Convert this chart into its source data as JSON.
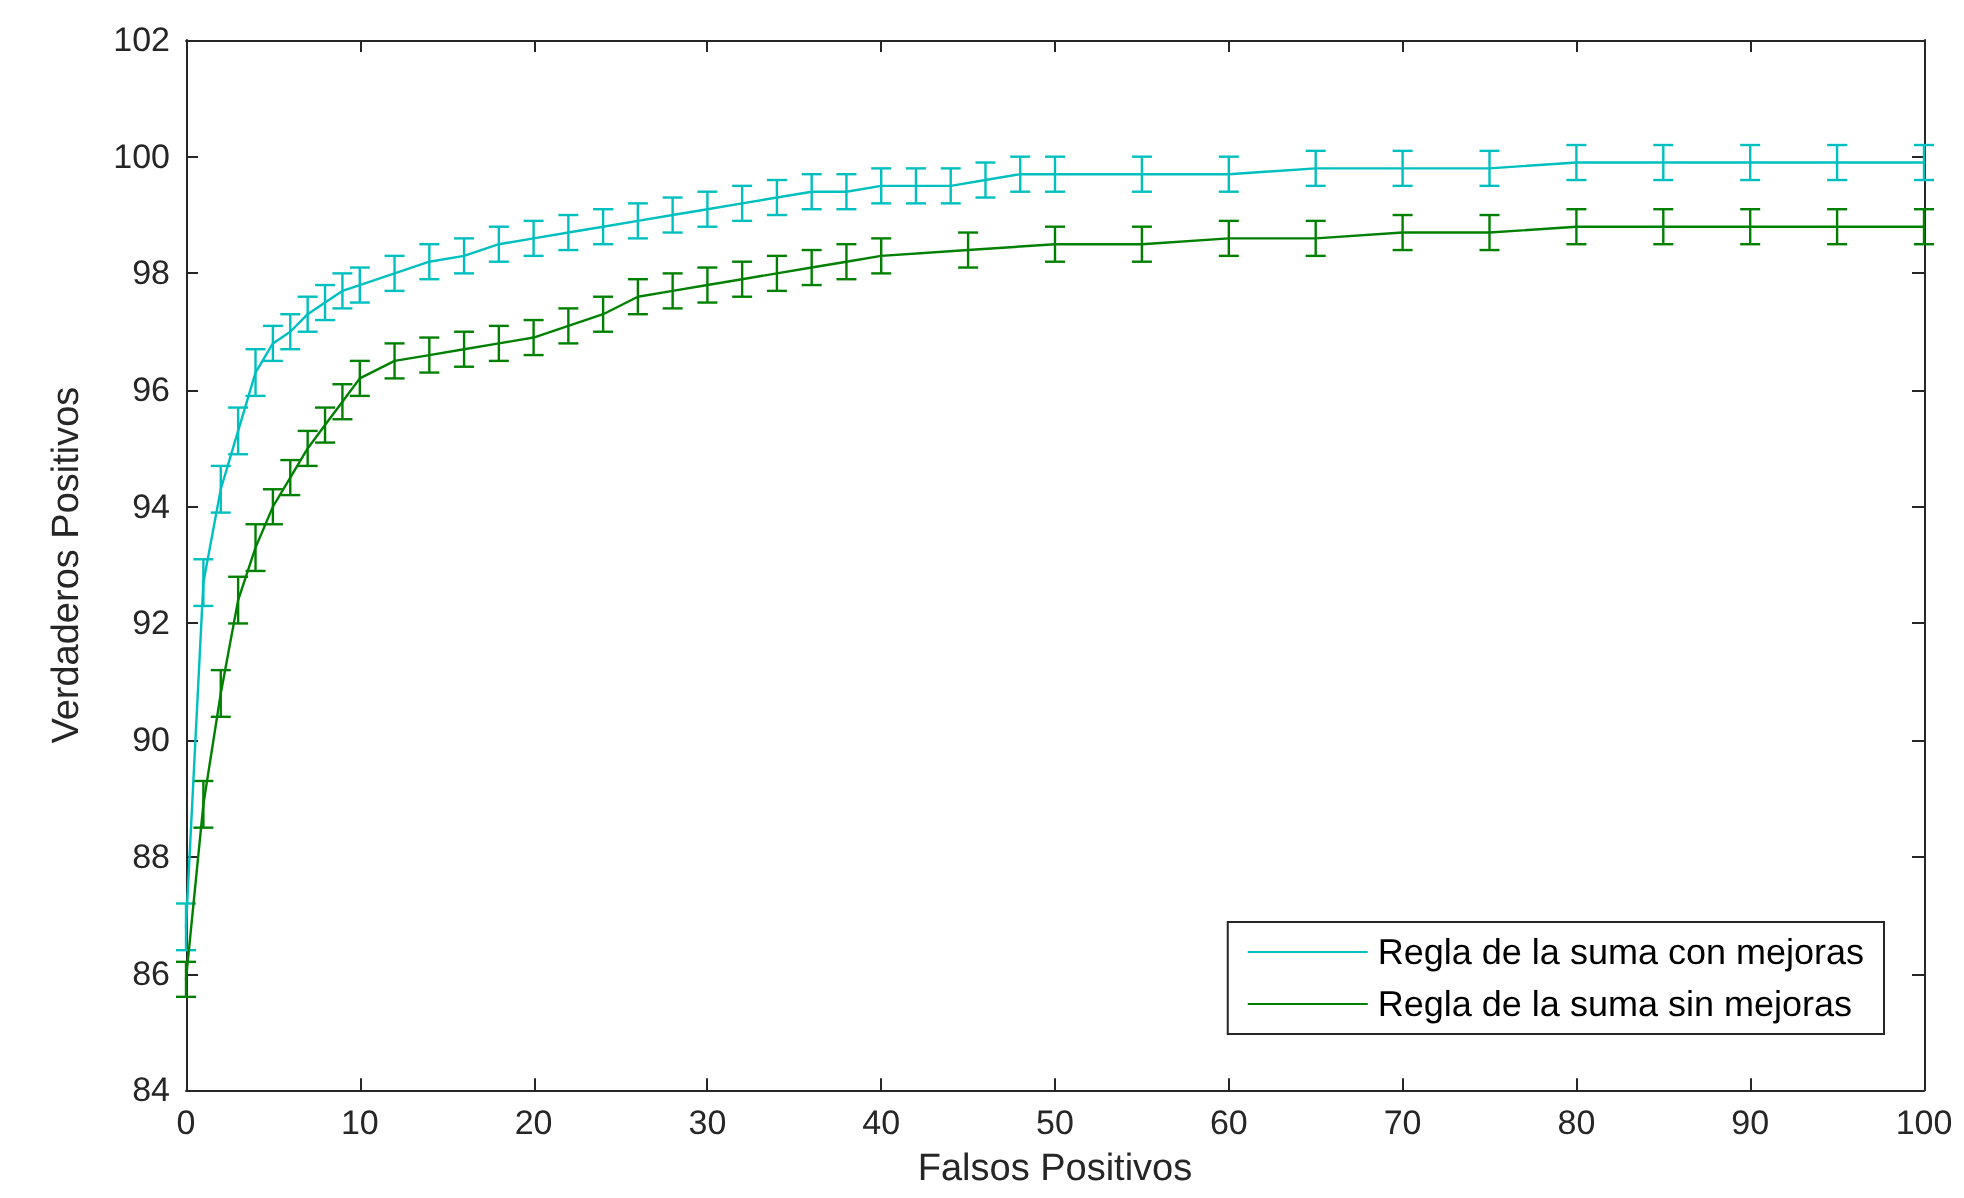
{
  "chart_data": {
    "type": "line",
    "xlabel": "Falsos Positivos",
    "ylabel": "Verdaderos Positivos",
    "xlim": [
      0,
      100
    ],
    "xticks": [
      0,
      10,
      20,
      30,
      40,
      50,
      60,
      70,
      80,
      90,
      100
    ],
    "ylim": [
      84,
      102
    ],
    "yticks": [
      84,
      86,
      88,
      90,
      92,
      94,
      96,
      98,
      100,
      102
    ],
    "grid": false,
    "legend": "bottom right",
    "marker": "none",
    "line_style": "solid",
    "series": [
      {
        "name": "Regla de la suma con mejoras",
        "color": "#00bfbf",
        "x": [
          0,
          1,
          2,
          3,
          4,
          5,
          6,
          7,
          8,
          9,
          10,
          12,
          14,
          16,
          18,
          20,
          22,
          24,
          26,
          28,
          30,
          32,
          34,
          36,
          38,
          40,
          42,
          44,
          46,
          48,
          50,
          55,
          60,
          65,
          70,
          75,
          80,
          85,
          90,
          95,
          100
        ],
        "values": [
          86.8,
          92.7,
          94.3,
          95.3,
          96.3,
          96.8,
          97.0,
          97.3,
          97.5,
          97.7,
          97.8,
          98.0,
          98.2,
          98.3,
          98.5,
          98.6,
          98.7,
          98.8,
          98.9,
          99.0,
          99.1,
          99.2,
          99.3,
          99.4,
          99.4,
          99.5,
          99.5,
          99.5,
          99.6,
          99.7,
          99.7,
          99.7,
          99.7,
          99.8,
          99.8,
          99.8,
          99.9,
          99.9,
          99.9,
          99.9,
          99.9
        ],
        "errors": [
          0.4,
          0.4,
          0.4,
          0.4,
          0.4,
          0.3,
          0.3,
          0.3,
          0.3,
          0.3,
          0.3,
          0.3,
          0.3,
          0.3,
          0.3,
          0.3,
          0.3,
          0.3,
          0.3,
          0.3,
          0.3,
          0.3,
          0.3,
          0.3,
          0.3,
          0.3,
          0.3,
          0.3,
          0.3,
          0.3,
          0.3,
          0.3,
          0.3,
          0.3,
          0.3,
          0.3,
          0.3,
          0.3,
          0.3,
          0.3,
          0.3
        ]
      },
      {
        "name": "Regla de la suma sin mejoras",
        "color": "#008000",
        "x": [
          0,
          1,
          2,
          3,
          4,
          5,
          6,
          7,
          8,
          9,
          10,
          12,
          14,
          16,
          18,
          20,
          22,
          24,
          26,
          28,
          30,
          32,
          34,
          36,
          38,
          40,
          45,
          50,
          55,
          60,
          65,
          70,
          75,
          80,
          85,
          90,
          95,
          100
        ],
        "values": [
          85.9,
          88.9,
          90.8,
          92.4,
          93.3,
          94.0,
          94.5,
          95.0,
          95.4,
          95.8,
          96.2,
          96.5,
          96.6,
          96.7,
          96.8,
          96.9,
          97.1,
          97.3,
          97.6,
          97.7,
          97.8,
          97.9,
          98.0,
          98.1,
          98.2,
          98.3,
          98.4,
          98.5,
          98.5,
          98.6,
          98.6,
          98.7,
          98.7,
          98.8,
          98.8,
          98.8,
          98.8,
          98.8
        ],
        "errors": [
          0.3,
          0.4,
          0.4,
          0.4,
          0.4,
          0.3,
          0.3,
          0.3,
          0.3,
          0.3,
          0.3,
          0.3,
          0.3,
          0.3,
          0.3,
          0.3,
          0.3,
          0.3,
          0.3,
          0.3,
          0.3,
          0.3,
          0.3,
          0.3,
          0.3,
          0.3,
          0.3,
          0.3,
          0.3,
          0.3,
          0.3,
          0.3,
          0.3,
          0.3,
          0.3,
          0.3,
          0.3,
          0.3
        ]
      }
    ]
  }
}
